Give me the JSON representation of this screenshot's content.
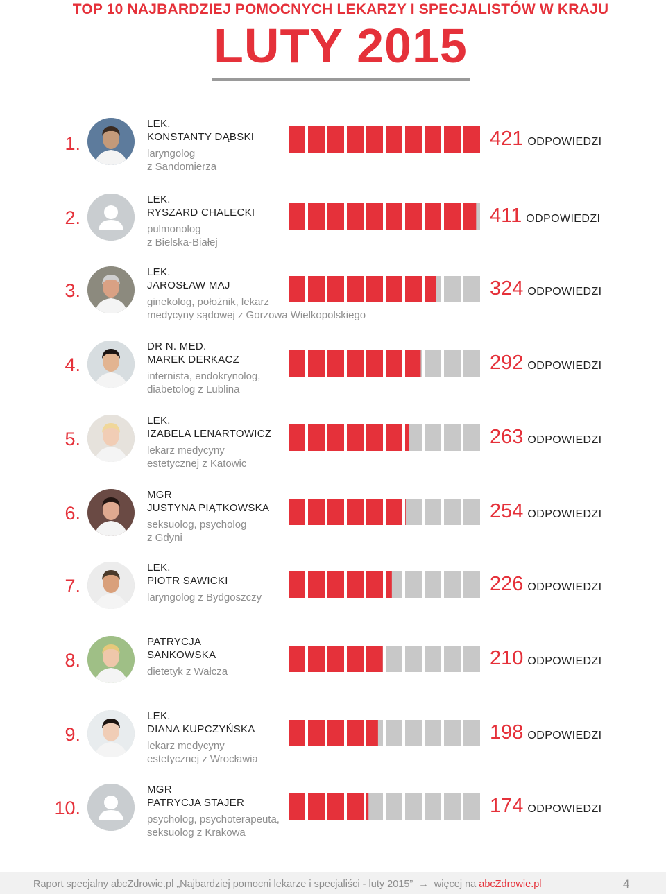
{
  "header": {
    "title": "TOP 10 NAJBARDZIEJ POMOCNYCH LEKARZY I SPECJALISTÓW W KRAJU",
    "period": "LUTY 2015"
  },
  "colors": {
    "accent": "#e5313a",
    "bar_empty": "#c8c8c8",
    "underline": "#9a9a9a"
  },
  "responses_word": "ODPOWIEDZI",
  "chart_data": {
    "type": "bar",
    "title": "TOP 10 NAJBARDZIEJ POMOCNYCH LEKARZY I SPECJALISTÓW W KRAJU",
    "subtitle": "LUTY 2015",
    "categories": [
      "KONSTANTY DĄBSKI",
      "RYSZARD CHALECKI",
      "JAROSŁAW MAJ",
      "MAREK DERKACZ",
      "IZABELA LENARTOWICZ",
      "JUSTYNA PIĄTKOWSKA",
      "PIOTR SAWICKI",
      "PATRYCJA SANKOWSKA",
      "DIANA KUPCZYŃSKA",
      "PATRYCJA STAJER"
    ],
    "values": [
      421,
      411,
      324,
      292,
      263,
      254,
      226,
      210,
      198,
      174
    ],
    "ylim": [
      0,
      421
    ],
    "grid": false,
    "legend": "none"
  },
  "entries": [
    {
      "rank": "1.",
      "title": "LEK.",
      "name": "KONSTANTY DĄBSKI",
      "desc": "laryngolog\nz Sandomierza",
      "count": "421",
      "avatar": "photo"
    },
    {
      "rank": "2.",
      "title": "LEK.",
      "name": "RYSZARD CHALECKI",
      "desc": "pulmonolog\nz Bielska-Białej",
      "count": "411",
      "avatar": "placeholder"
    },
    {
      "rank": "3.",
      "title": "LEK.",
      "name": "JAROSŁAW MAJ",
      "desc": "ginekolog, położnik, lekarz\nmedycyny sądowej z Gorzowa Wielkopolskiego",
      "count": "324",
      "avatar": "photo"
    },
    {
      "rank": "4.",
      "title": "DR N. MED.",
      "name": "MAREK DERKACZ",
      "desc": "internista, endokrynolog,\ndiabetolog z Lublina",
      "count": "292",
      "avatar": "photo"
    },
    {
      "rank": "5.",
      "title": "LEK.",
      "name": "IZABELA LENARTOWICZ",
      "desc": "lekarz medycyny\nestetycznej z Katowic",
      "count": "263",
      "avatar": "photo"
    },
    {
      "rank": "6.",
      "title": "MGR",
      "name": "JUSTYNA PIĄTKOWSKA",
      "desc": "seksuolog, psycholog\nz Gdyni",
      "count": "254",
      "avatar": "photo"
    },
    {
      "rank": "7.",
      "title": "LEK.",
      "name": "PIOTR SAWICKI",
      "desc": "laryngolog z Bydgoszczy",
      "count": "226",
      "avatar": "photo"
    },
    {
      "rank": "8.",
      "title": "PATRYCJA",
      "name": "SANKOWSKA",
      "desc": "dietetyk z Wałcza",
      "count": "210",
      "avatar": "photo"
    },
    {
      "rank": "9.",
      "title": "LEK.",
      "name": "DIANA KUPCZYŃSKA",
      "desc": "lekarz medycyny\nestetycznej z Wrocławia",
      "count": "198",
      "avatar": "photo"
    },
    {
      "rank": "10.",
      "title": "MGR",
      "name": "PATRYCJA STAJER",
      "desc": "psycholog, psychoterapeuta,\nseksuolog z Krakowa",
      "count": "174",
      "avatar": "placeholder"
    }
  ],
  "footer": {
    "lead": "Raport specjalny abcZdrowie.pl „Najbardziej pomocni lekarze i specjaliści - luty 2015”",
    "arrow": "→",
    "more": "więcej na",
    "link": "abcZdrowie.pl",
    "page": "4"
  }
}
